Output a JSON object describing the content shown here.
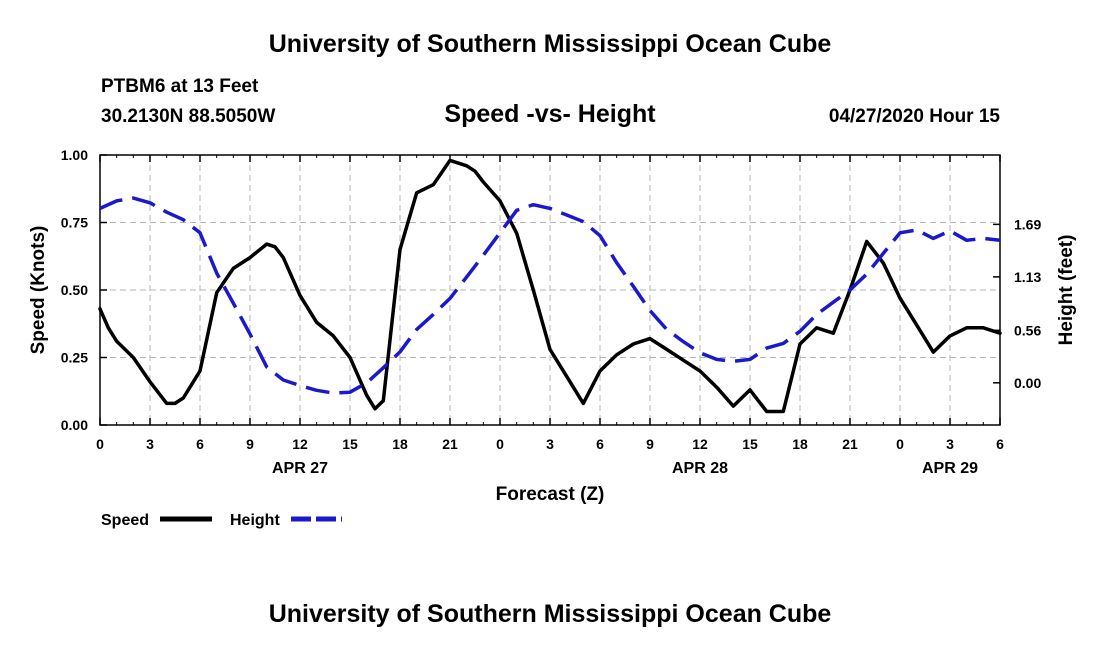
{
  "header": {
    "top_title": "University of Southern Mississippi Ocean Cube",
    "station": "PTBM6 at 13 Feet",
    "coords": "30.2130N 88.5050W",
    "datetime": "04/27/2020 Hour 15",
    "bottom_title": "University of Southern Mississippi Ocean Cube"
  },
  "colors": {
    "speed": "#000000",
    "height": "#1a1acc",
    "grid": "#b4b4b4"
  },
  "chart_data": {
    "type": "line",
    "title": "Speed -vs- Height",
    "xlabel": "Forecast (Z)",
    "ylabel": "Speed (Knots)",
    "y2label": "Height (feet)",
    "xlim": [
      0,
      54
    ],
    "ylim": [
      0,
      1
    ],
    "y2lim": [
      -0.45,
      2.43
    ],
    "x_ticks": [
      0,
      3,
      6,
      9,
      12,
      15,
      18,
      21,
      24,
      27,
      30,
      33,
      36,
      39,
      42,
      45,
      48,
      51,
      54
    ],
    "x_tick_labels": [
      "0",
      "3",
      "6",
      "9",
      "12",
      "15",
      "18",
      "21",
      "0",
      "3",
      "6",
      "9",
      "12",
      "15",
      "18",
      "21",
      "0",
      "3",
      "6"
    ],
    "date_labels": [
      {
        "x": 12,
        "label": "APR 27"
      },
      {
        "x": 36,
        "label": "APR 28"
      },
      {
        "x": 51,
        "label": "APR 29"
      }
    ],
    "y_ticks": [
      0,
      0.25,
      0.5,
      0.75,
      1.0
    ],
    "y_tick_labels": [
      "0.00",
      "0.25",
      "0.50",
      "0.75",
      "1.00"
    ],
    "y2_ticks": [
      0,
      0.56,
      1.13,
      1.69
    ],
    "y2_tick_labels": [
      "0.00",
      "0.56",
      "1.13",
      "1.69"
    ],
    "grid": true,
    "legend": [
      {
        "name": "Speed",
        "style": "solid"
      },
      {
        "name": "Height",
        "style": "dashed"
      }
    ],
    "series": [
      {
        "name": "Speed",
        "axis": "left",
        "style": "solid",
        "x": [
          0,
          0.5,
          1,
          2,
          3,
          4,
          4.5,
          5,
          6,
          7,
          8,
          9,
          10,
          10.5,
          11,
          12,
          13,
          14,
          15,
          16,
          16.5,
          17,
          18,
          19,
          20,
          21,
          22,
          22.5,
          23,
          24,
          25,
          26,
          27,
          28,
          29,
          30,
          31,
          32,
          33,
          34,
          35,
          36,
          37,
          38,
          39,
          40,
          41,
          42,
          43,
          44,
          45,
          46,
          47,
          48,
          49,
          50,
          51,
          52,
          53,
          54
        ],
        "values": [
          0.43,
          0.36,
          0.31,
          0.25,
          0.16,
          0.08,
          0.08,
          0.1,
          0.2,
          0.49,
          0.58,
          0.62,
          0.67,
          0.66,
          0.62,
          0.48,
          0.38,
          0.33,
          0.25,
          0.11,
          0.06,
          0.09,
          0.65,
          0.86,
          0.89,
          0.98,
          0.96,
          0.94,
          0.9,
          0.83,
          0.71,
          0.5,
          0.28,
          0.18,
          0.08,
          0.2,
          0.26,
          0.3,
          0.32,
          0.28,
          0.24,
          0.2,
          0.14,
          0.07,
          0.13,
          0.05,
          0.05,
          0.3,
          0.36,
          0.34,
          0.5,
          0.68,
          0.6,
          0.47,
          0.37,
          0.27,
          0.33,
          0.36,
          0.36,
          0.34
        ]
      },
      {
        "name": "Height",
        "axis": "right",
        "style": "dashed",
        "x": [
          0,
          1,
          2,
          3,
          4,
          5,
          6,
          7,
          8,
          9,
          10,
          11,
          12,
          13,
          14,
          15,
          16,
          17,
          18,
          19,
          20,
          21,
          22,
          23,
          24,
          25,
          26,
          27,
          28,
          29,
          30,
          31,
          32,
          33,
          34,
          35,
          36,
          37,
          38,
          39,
          40,
          41,
          42,
          43,
          44,
          45,
          46,
          47,
          48,
          49,
          50,
          51,
          52,
          53,
          54
        ],
        "values": [
          1.86,
          1.94,
          1.97,
          1.92,
          1.82,
          1.74,
          1.6,
          1.17,
          0.85,
          0.52,
          0.17,
          0.03,
          -0.03,
          -0.08,
          -0.11,
          -0.1,
          0.0,
          0.16,
          0.33,
          0.57,
          0.73,
          0.9,
          1.13,
          1.36,
          1.6,
          1.84,
          1.9,
          1.86,
          1.79,
          1.72,
          1.57,
          1.28,
          1.03,
          0.77,
          0.57,
          0.44,
          0.32,
          0.25,
          0.23,
          0.25,
          0.37,
          0.42,
          0.55,
          0.73,
          0.86,
          0.99,
          1.16,
          1.38,
          1.6,
          1.63,
          1.54,
          1.62,
          1.52,
          1.54,
          1.52
        ]
      }
    ]
  }
}
